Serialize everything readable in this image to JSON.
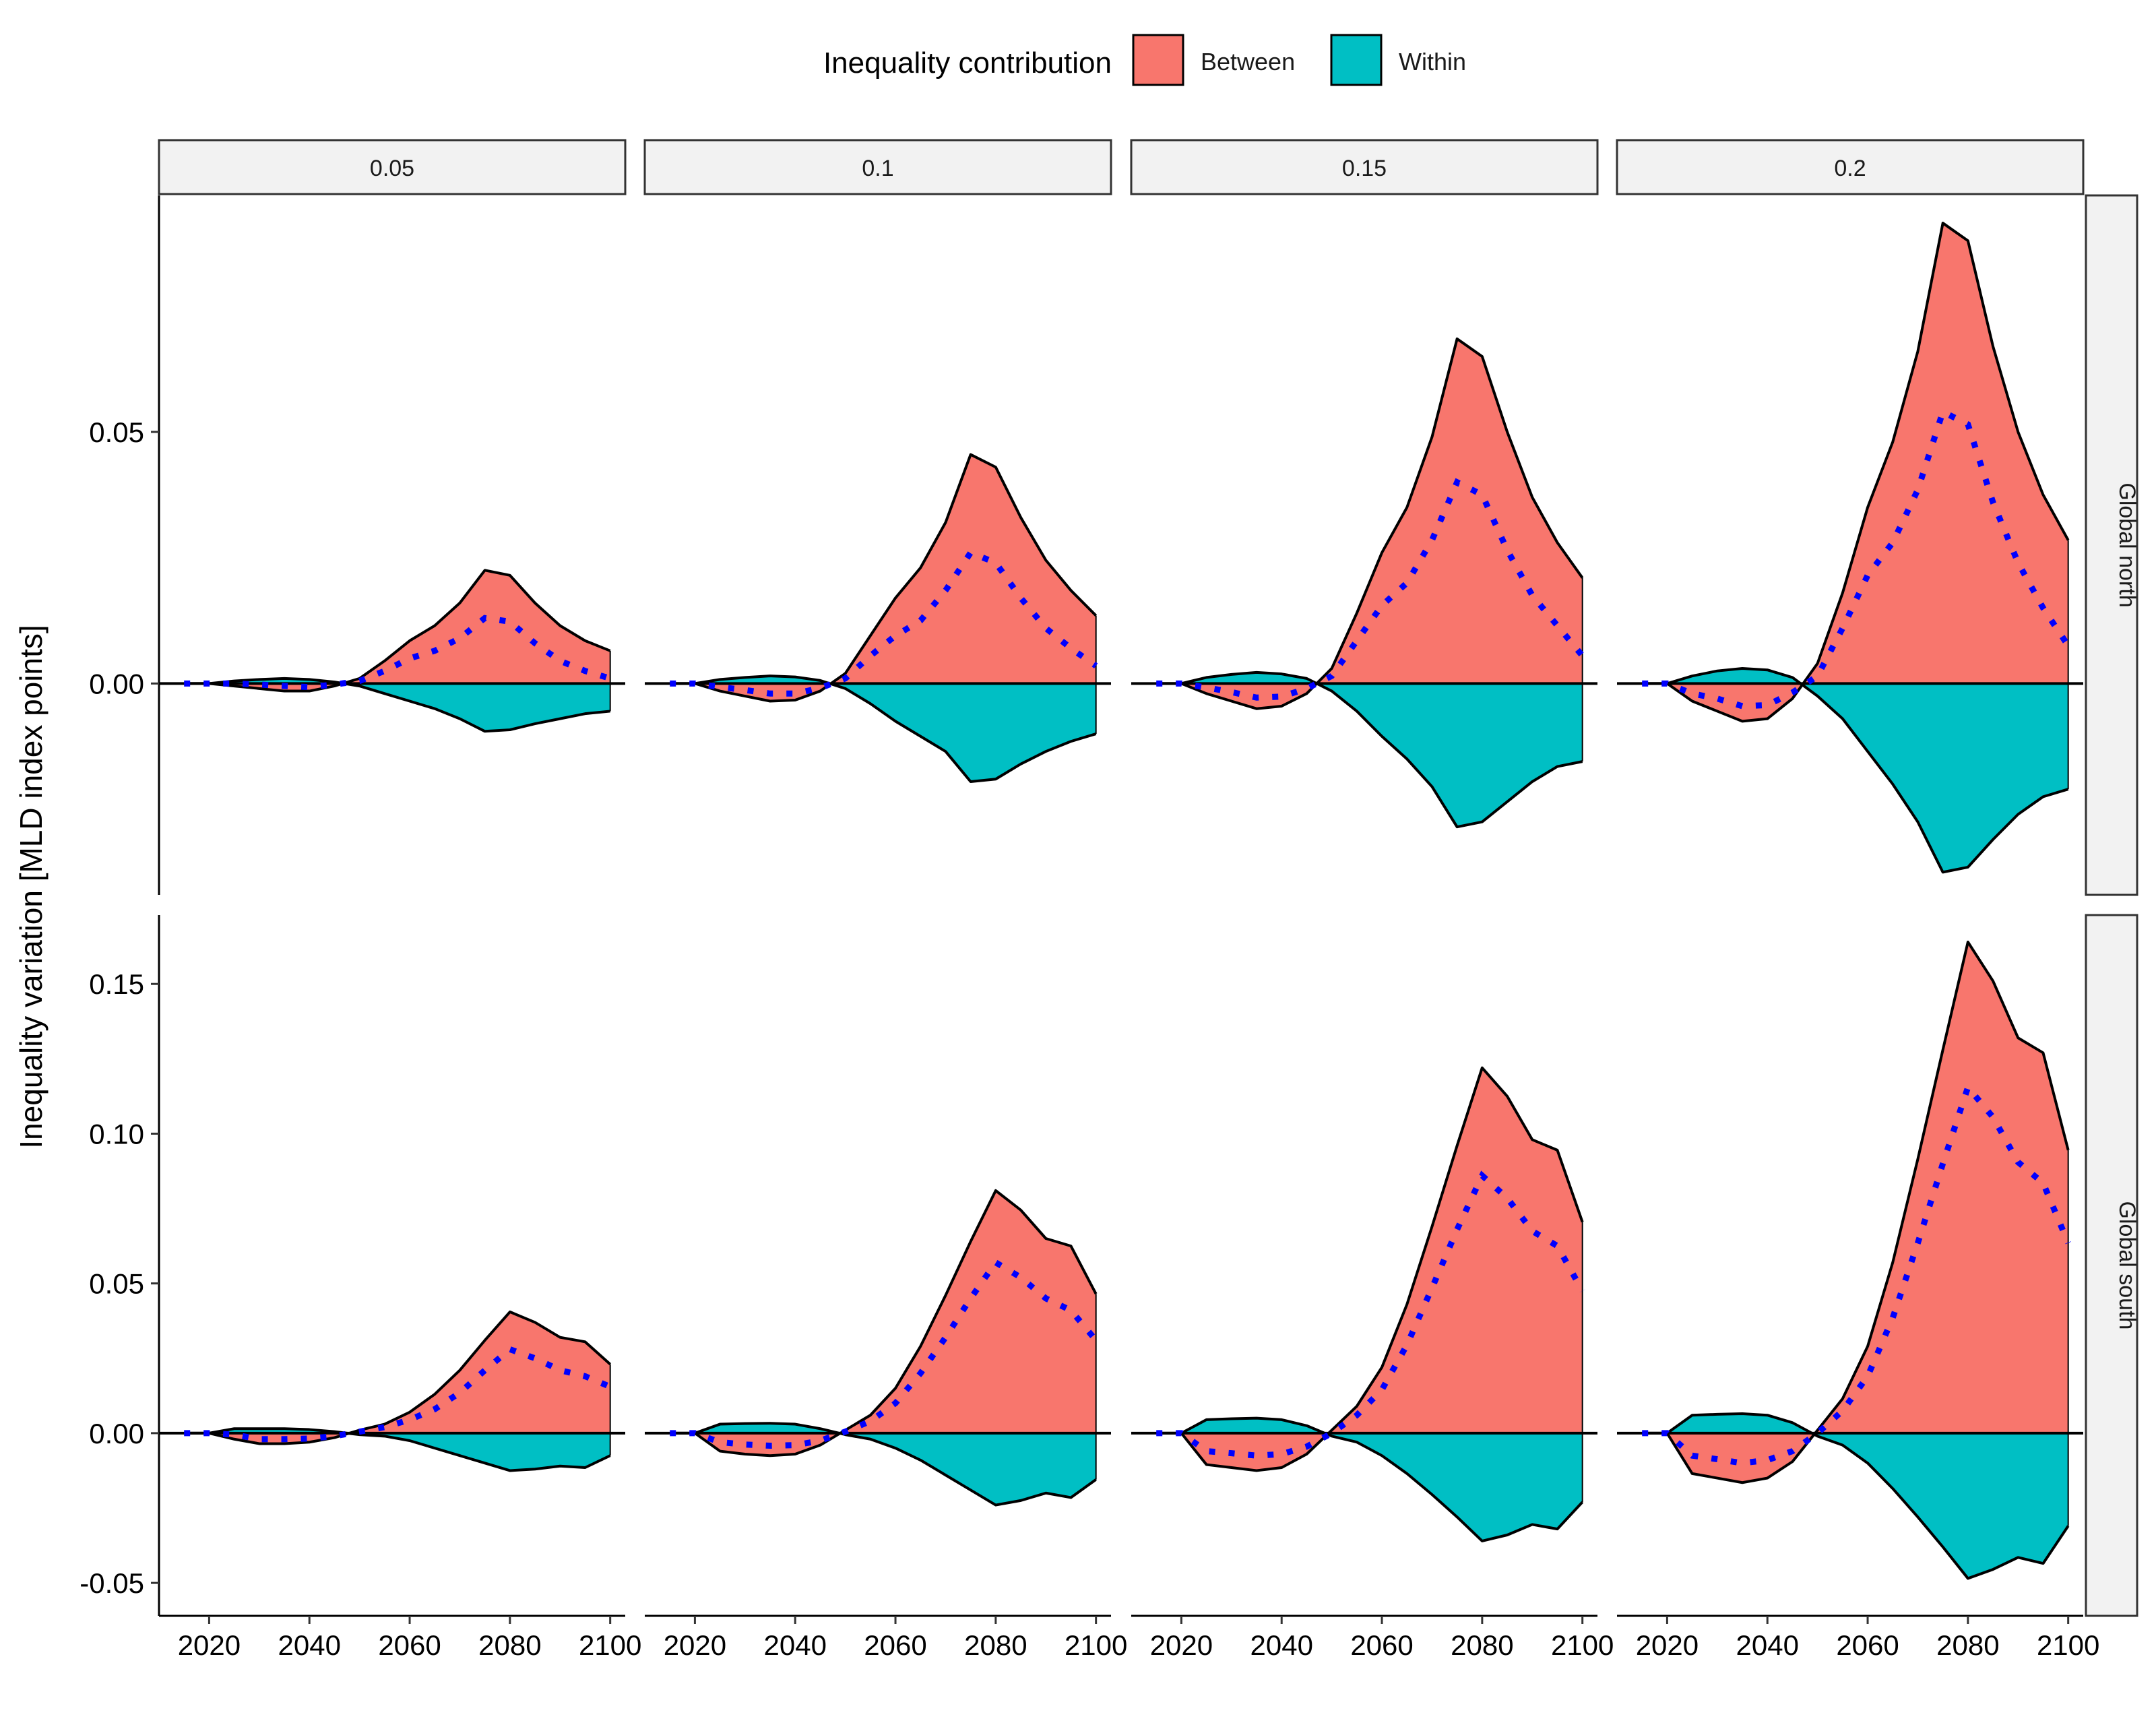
{
  "chart_data": {
    "type": "area",
    "ylabel": "Inequality variation [MLD index points]",
    "xlabel": "",
    "legend": {
      "title": "Inequality contribution",
      "position": "top",
      "entries": [
        {
          "name": "Between",
          "color": "#F8766D"
        },
        {
          "name": "Within",
          "color": "#00BFC4"
        }
      ]
    },
    "colors": {
      "between": "#F8766D",
      "within": "#00BFC4",
      "total_line": "#0000FF",
      "outline": "#000000"
    },
    "grid": false,
    "x": [
      2015,
      2020,
      2025,
      2030,
      2035,
      2040,
      2045,
      2050,
      2055,
      2060,
      2065,
      2070,
      2075,
      2080,
      2085,
      2090,
      2095,
      2100
    ],
    "xlim": [
      2010,
      2103
    ],
    "x_ticks": [
      "2020",
      "2040",
      "2060",
      "2080",
      "2100"
    ],
    "columns": [
      "0.05",
      "0.1",
      "0.15",
      "0.2"
    ],
    "rows": [
      {
        "label": "Global north",
        "ylim": [
          -0.042,
          0.097
        ],
        "y_ticks": [
          "0.00",
          "0.05"
        ]
      },
      {
        "label": "Global south",
        "ylim": [
          -0.061,
          0.173
        ],
        "y_ticks": [
          "-0.05",
          "0.00",
          "0.05",
          "0.10",
          "0.15"
        ]
      }
    ],
    "y_tick_values": {
      "Global north": [
        0.0,
        0.05
      ],
      "Global south": [
        -0.05,
        0.0,
        0.05,
        0.1,
        0.15
      ]
    },
    "panels": [
      {
        "row": "Global north",
        "col": "0.05",
        "between": [
          0,
          0,
          -0.0005,
          -0.001,
          -0.0015,
          -0.0015,
          -0.0005,
          0.001,
          0.0045,
          0.0085,
          0.0115,
          0.016,
          0.0225,
          0.0215,
          0.016,
          0.0115,
          0.0085,
          0.0065
        ],
        "within": [
          0,
          0,
          0.0005,
          0.0008,
          0.001,
          0.0008,
          0.0003,
          -0.0005,
          -0.002,
          -0.0035,
          -0.005,
          -0.007,
          -0.0095,
          -0.0092,
          -0.008,
          -0.007,
          -0.006,
          -0.0055
        ]
      },
      {
        "row": "Global north",
        "col": "0.1",
        "between": [
          0,
          0,
          -0.0015,
          -0.0025,
          -0.0035,
          -0.0033,
          -0.0015,
          0.002,
          0.0095,
          0.017,
          0.023,
          0.032,
          0.0455,
          0.043,
          0.033,
          0.0245,
          0.0185,
          0.0135
        ],
        "within": [
          0,
          0,
          0.0008,
          0.0012,
          0.0015,
          0.0013,
          0.0006,
          -0.001,
          -0.004,
          -0.0075,
          -0.0105,
          -0.0135,
          -0.0195,
          -0.019,
          -0.016,
          -0.0135,
          -0.0115,
          -0.01
        ]
      },
      {
        "row": "Global north",
        "col": "0.15",
        "between": [
          0,
          0,
          -0.002,
          -0.0035,
          -0.005,
          -0.0045,
          -0.002,
          0.003,
          0.014,
          0.026,
          0.035,
          0.049,
          0.0685,
          0.065,
          0.05,
          0.037,
          0.028,
          0.021
        ],
        "within": [
          0,
          0,
          0.0012,
          0.0018,
          0.0022,
          0.0019,
          0.001,
          -0.0015,
          -0.0055,
          -0.0105,
          -0.015,
          -0.0205,
          -0.0285,
          -0.0275,
          -0.0235,
          -0.0195,
          -0.0165,
          -0.0155
        ]
      },
      {
        "row": "Global north",
        "col": "0.2",
        "between": [
          0,
          0,
          -0.0035,
          -0.0055,
          -0.0075,
          -0.007,
          -0.003,
          0.004,
          0.018,
          0.035,
          0.048,
          0.066,
          0.0915,
          0.088,
          0.067,
          0.05,
          0.0375,
          0.0285
        ],
        "within": [
          0,
          0,
          0.0015,
          0.0025,
          0.003,
          0.0027,
          0.0012,
          -0.0025,
          -0.007,
          -0.0135,
          -0.02,
          -0.0275,
          -0.0375,
          -0.0365,
          -0.031,
          -0.026,
          -0.0225,
          -0.021
        ]
      },
      {
        "row": "Global south",
        "col": "0.05",
        "between": [
          0,
          0,
          -0.002,
          -0.0035,
          -0.0035,
          -0.003,
          -0.0015,
          0.001,
          0.003,
          0.007,
          0.013,
          0.021,
          0.031,
          0.0405,
          0.037,
          0.032,
          0.0305,
          0.023
        ],
        "within": [
          0,
          0,
          0.0015,
          0.0015,
          0.0015,
          0.0012,
          0.0005,
          -0.0005,
          -0.001,
          -0.0025,
          -0.005,
          -0.0075,
          -0.01,
          -0.0125,
          -0.012,
          -0.011,
          -0.0115,
          -0.0075
        ]
      },
      {
        "row": "Global south",
        "col": "0.1",
        "between": [
          0,
          0,
          -0.006,
          -0.007,
          -0.0075,
          -0.007,
          -0.004,
          0.001,
          0.006,
          0.015,
          0.029,
          0.046,
          0.064,
          0.081,
          0.0745,
          0.065,
          0.0625,
          0.0465
        ],
        "within": [
          0,
          0,
          0.003,
          0.0032,
          0.0033,
          0.003,
          0.0015,
          -0.0005,
          -0.002,
          -0.005,
          -0.009,
          -0.014,
          -0.019,
          -0.024,
          -0.0225,
          -0.02,
          -0.0215,
          -0.0155
        ]
      },
      {
        "row": "Global south",
        "col": "0.15",
        "between": [
          0,
          0,
          -0.0105,
          -0.0115,
          -0.0125,
          -0.0115,
          -0.007,
          0.001,
          0.009,
          0.022,
          0.043,
          0.069,
          0.096,
          0.122,
          0.1125,
          0.098,
          0.0945,
          0.0705
        ],
        "within": [
          0,
          0,
          0.0045,
          0.0048,
          0.005,
          0.0045,
          0.0025,
          -0.001,
          -0.003,
          -0.0075,
          -0.0135,
          -0.0205,
          -0.028,
          -0.036,
          -0.034,
          -0.0305,
          -0.032,
          -0.023
        ]
      },
      {
        "row": "Global south",
        "col": "0.2",
        "between": [
          0,
          0,
          -0.0135,
          -0.015,
          -0.0165,
          -0.015,
          -0.0095,
          0.001,
          0.0115,
          0.029,
          0.057,
          0.0915,
          0.128,
          0.164,
          0.151,
          0.132,
          0.127,
          0.0945
        ],
        "within": [
          0,
          0,
          0.006,
          0.0063,
          0.0065,
          0.006,
          0.0035,
          -0.001,
          -0.004,
          -0.01,
          -0.0185,
          -0.028,
          -0.038,
          -0.0485,
          -0.0455,
          -0.0415,
          -0.0435,
          -0.031
        ]
      }
    ]
  }
}
